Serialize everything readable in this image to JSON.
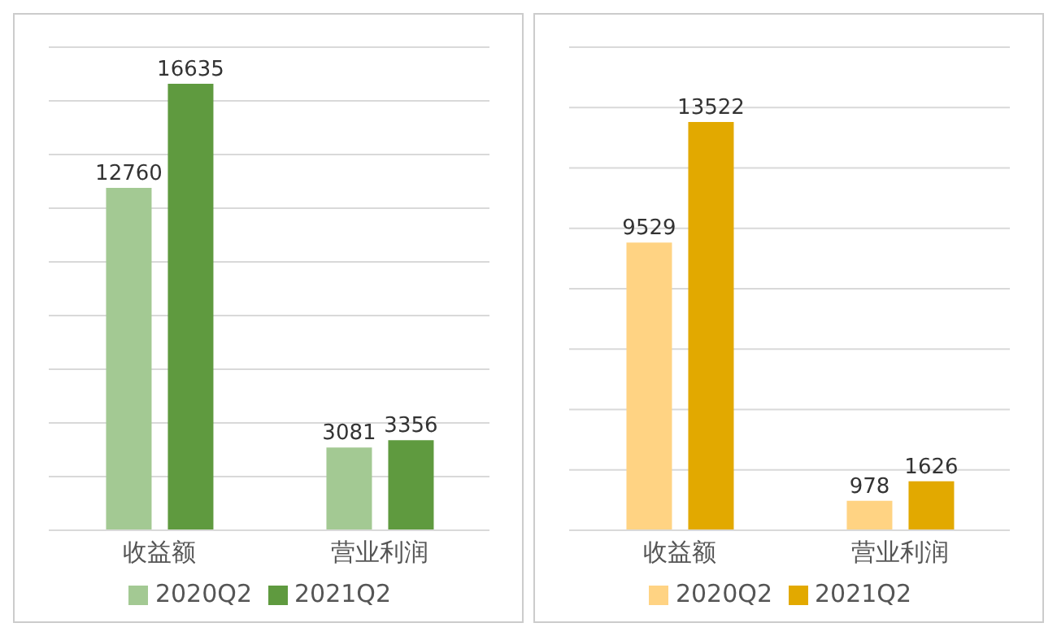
{
  "chart_data": [
    {
      "type": "bar",
      "categories": [
        "收益额",
        "营业利润"
      ],
      "series": [
        {
          "name": "2020Q2",
          "color": "#a3c993",
          "values": [
            12760,
            3081
          ]
        },
        {
          "name": "2021Q2",
          "color": "#5f9a3f",
          "values": [
            16635,
            3356
          ]
        }
      ],
      "ylim": [
        0,
        18000
      ],
      "yticks": [
        {
          "value": 0,
          "label": null
        },
        {
          "value": 2000,
          "label": null
        },
        {
          "value": 4000,
          "label": null
        },
        {
          "value": 6000,
          "label": null
        },
        {
          "value": 8000,
          "label": null
        },
        {
          "value": 10000,
          "label": null
        },
        {
          "value": 12000,
          "label": null
        },
        {
          "value": 14000,
          "label": null
        },
        {
          "value": 16000,
          "label": null
        },
        {
          "value": 18000,
          "label": null
        }
      ],
      "grid": "y",
      "legend": "bottom",
      "data_labels": true
    },
    {
      "type": "bar",
      "categories": [
        "收益额",
        "营业利润"
      ],
      "series": [
        {
          "name": "2020Q2",
          "color": "#ffd383",
          "values": [
            9529,
            978
          ]
        },
        {
          "name": "2021Q2",
          "color": "#e2a900",
          "values": [
            13522,
            1626
          ]
        }
      ],
      "ylim": [
        0,
        16000
      ],
      "yticks": [
        {
          "value": 0,
          "label": null
        },
        {
          "value": 2000,
          "label": null
        },
        {
          "value": 4000,
          "label": null
        },
        {
          "value": 6000,
          "label": null
        },
        {
          "value": 8000,
          "label": null
        },
        {
          "value": 10000,
          "label": null
        },
        {
          "value": 12000,
          "label": null
        },
        {
          "value": 14000,
          "label": null
        },
        {
          "value": 16000,
          "label": null
        }
      ],
      "grid": "y",
      "legend": "bottom",
      "data_labels": true
    }
  ]
}
